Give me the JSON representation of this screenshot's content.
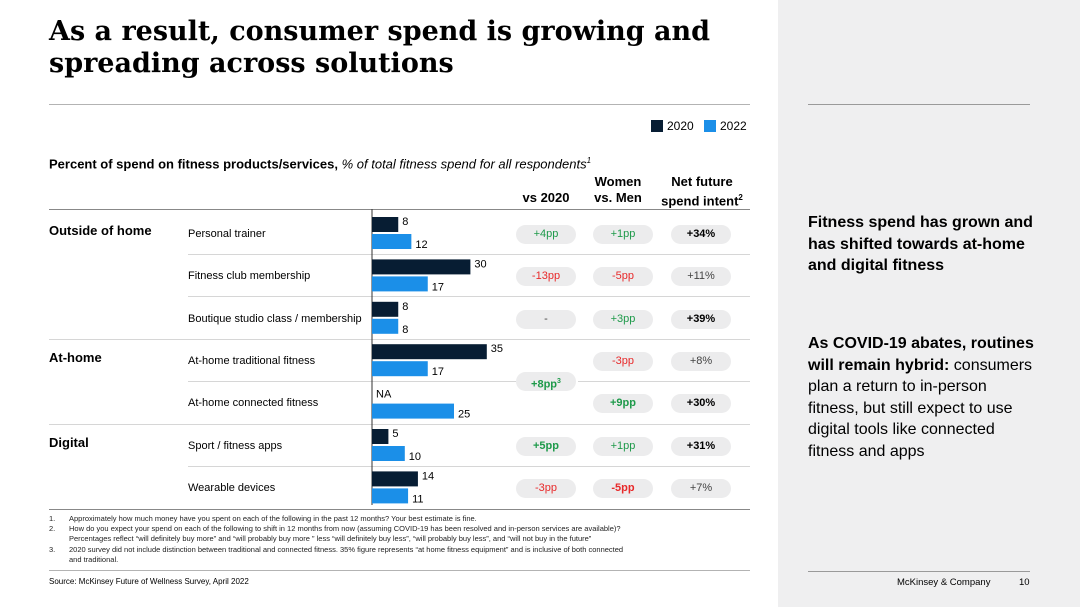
{
  "title": "As a result, consumer spend is growing and spreading across solutions",
  "legend": [
    {
      "label": "2020",
      "color": "#071d33"
    },
    {
      "label": "2022",
      "color": "#1b8fe8"
    }
  ],
  "chart_heading": {
    "bold": "Percent of spend on fitness products/services,",
    "italic": " % of total fitness spend for all respondents",
    "sup": "1"
  },
  "columns": {
    "vs2020": "vs 2020",
    "women_line1": "Women",
    "women_line2": "vs. Men",
    "intent_line1": "Net future",
    "intent_line2": "spend intent",
    "intent_sup": "2"
  },
  "sections": [
    "Outside of home",
    "At-home",
    "Digital"
  ],
  "chart_data": {
    "type": "bar",
    "orientation": "horizontal",
    "categories": [
      "Personal trainer",
      "Fitness club membership",
      "Boutique studio class / membership",
      "At-home traditional fitness",
      "At-home connected fitness",
      "Sport / fitness apps",
      "Wearable devices"
    ],
    "series": [
      {
        "name": "2020",
        "values": [
          8,
          30,
          8,
          35,
          null,
          5,
          14
        ]
      },
      {
        "name": "2022",
        "values": [
          12,
          17,
          8,
          17,
          25,
          10,
          11
        ]
      }
    ],
    "missing_label": "NA",
    "xlim": [
      0,
      35
    ]
  },
  "vs2020": [
    {
      "text": "+4pp",
      "tone": "pos"
    },
    {
      "text": "-13pp",
      "tone": "neg"
    },
    {
      "text": "-",
      "tone": "neu"
    },
    {
      "text": "+5pp",
      "tone": "pos-bold"
    },
    {
      "text": "-3pp",
      "tone": "neg"
    }
  ],
  "vs2020_athome": {
    "text": "+8pp",
    "sup": "3"
  },
  "women_vs_men": [
    {
      "text": "+1pp",
      "tone": "pos"
    },
    {
      "text": "-5pp",
      "tone": "neg"
    },
    {
      "text": "+3pp",
      "tone": "pos"
    },
    {
      "text": "-3pp",
      "tone": "neg"
    },
    {
      "text": "+9pp",
      "tone": "pos-bold"
    },
    {
      "text": "+1pp",
      "tone": "pos"
    },
    {
      "text": "-5pp",
      "tone": "neg-bold"
    }
  ],
  "spend_intent": [
    {
      "text": "+34%",
      "tone": "strong"
    },
    {
      "text": "+11%",
      "tone": "neu"
    },
    {
      "text": "+39%",
      "tone": "strong"
    },
    {
      "text": "+8%",
      "tone": "neu"
    },
    {
      "text": "+30%",
      "tone": "strong"
    },
    {
      "text": "+31%",
      "tone": "strong"
    },
    {
      "text": "+7%",
      "tone": "neu"
    }
  ],
  "footnotes": [
    {
      "num": "1.",
      "text": "Approximately how much money have you spent on each of the following in the past 12 months? Your best estimate is fine."
    },
    {
      "num": "2.",
      "text": "How do you expect your spend on each of the following to shift in 12 months from now (assuming COVID-19 has been resolved and in-person services are available)?"
    },
    {
      "num": "",
      "text": "Percentages reflect “will definitely buy more” and “will probably buy more ” less “will definitely buy less”, “will probably buy less”, and “will not buy in the future”"
    },
    {
      "num": "3.",
      "text": "2020 survey did not include distinction between traditional and connected fitness. 35% figure represents “at home fitness equipment” and is inclusive of both connected"
    },
    {
      "num": "",
      "text": "and traditional."
    }
  ],
  "source": "Source: McKinsey Future of Wellness Survey, April 2022",
  "panel": {
    "p1": "Fitness spend has grown and has shifted towards at-home and digital fitness",
    "p2_bold": "As COVID-19 abates, routines will remain hybrid:",
    "p2_rest": " consumers plan a return to in-person fitness, but still expect to use digital tools like connected fitness and apps"
  },
  "brand": "McKinsey & Company",
  "page_number": "10"
}
